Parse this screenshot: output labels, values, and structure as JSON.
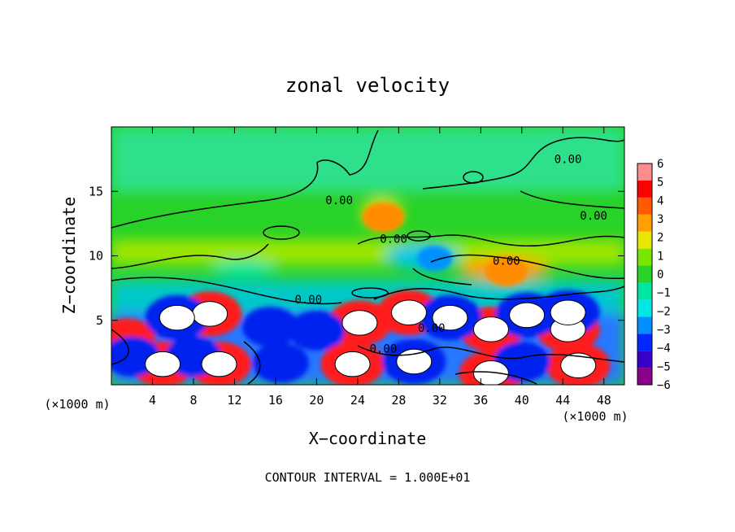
{
  "chart_data": {
    "type": "heatmap",
    "title": "zonal velocity",
    "xlabel": "X−coordinate",
    "ylabel": "Z−coordinate",
    "x_unit_label_left": "(×1000 m)",
    "x_unit_label_right": "(×1000 m)",
    "footnote": "CONTOUR INTERVAL = 1.000E+01",
    "xlim": [
      0,
      50
    ],
    "ylim": [
      0,
      20
    ],
    "x_ticks": [
      4,
      8,
      12,
      16,
      20,
      24,
      28,
      32,
      36,
      40,
      44,
      48
    ],
    "x_tick_labels": [
      "4",
      "8",
      "12",
      "16",
      "20",
      "24",
      "28",
      "32",
      "36",
      "40",
      "44",
      "48"
    ],
    "y_ticks": [
      5,
      10,
      15
    ],
    "y_tick_labels": [
      "5",
      "10",
      "15"
    ],
    "colorbar": {
      "min": -6,
      "max": 6,
      "labels": [
        "6",
        "5",
        "4",
        "3",
        "2",
        "1",
        "0",
        "−1",
        "−2",
        "−3",
        "−4",
        "−5",
        "−6"
      ],
      "colors": [
        "#8b008b",
        "#3b00c8",
        "#0028ff",
        "#0090ff",
        "#00e6e6",
        "#00e6a0",
        "#28d228",
        "#7ae600",
        "#e6e600",
        "#ffa000",
        "#ff5a00",
        "#ff0000",
        "#ff8c8c"
      ]
    },
    "contour_labels": [
      {
        "text": "0.00",
        "x": 44.5,
        "y": 17.2
      },
      {
        "text": "0.00",
        "x": 22.2,
        "y": 14.0
      },
      {
        "text": "0.00",
        "x": 47.0,
        "y": 12.8
      },
      {
        "text": "0.00",
        "x": 27.5,
        "y": 11.0
      },
      {
        "text": "0.00",
        "x": 38.5,
        "y": 9.3
      },
      {
        "text": "0.00",
        "x": 19.2,
        "y": 6.3
      },
      {
        "text": "0.00",
        "x": 31.2,
        "y": 4.1
      },
      {
        "text": "0.00",
        "x": 26.5,
        "y": 2.5
      }
    ],
    "positive_maxima": [
      {
        "x": 9.6,
        "y": 5.5,
        "value": 6
      },
      {
        "x": 29.0,
        "y": 5.6,
        "value": 6
      },
      {
        "x": 24.2,
        "y": 4.8,
        "value": 6
      },
      {
        "x": 37.0,
        "y": 4.3,
        "value": 6
      },
      {
        "x": 44.5,
        "y": 4.3,
        "value": 6
      },
      {
        "x": 5.0,
        "y": 1.6,
        "value": 6
      },
      {
        "x": 10.5,
        "y": 1.6,
        "value": 6
      },
      {
        "x": 23.5,
        "y": 1.6,
        "value": 6
      },
      {
        "x": 37.0,
        "y": 0.9,
        "value": 6
      },
      {
        "x": 45.5,
        "y": 1.5,
        "value": 6
      },
      {
        "x": 1.5,
        "y": 3.6,
        "value": 5
      },
      {
        "x": 26.5,
        "y": 13.0,
        "value": 3
      },
      {
        "x": 38.5,
        "y": 8.8,
        "value": 3
      }
    ],
    "negative_minima": [
      {
        "x": 6.4,
        "y": 5.2,
        "value": -6
      },
      {
        "x": 33.0,
        "y": 5.2,
        "value": -6
      },
      {
        "x": 40.5,
        "y": 5.4,
        "value": -6
      },
      {
        "x": 44.5,
        "y": 5.6,
        "value": -6
      },
      {
        "x": 15.5,
        "y": 4.5,
        "value": -5
      },
      {
        "x": 20.0,
        "y": 4.2,
        "value": -5
      },
      {
        "x": 2.0,
        "y": 2.2,
        "value": -5
      },
      {
        "x": 8.0,
        "y": 2.2,
        "value": -5
      },
      {
        "x": 16.5,
        "y": 1.7,
        "value": -5
      },
      {
        "x": 29.5,
        "y": 1.8,
        "value": -6
      },
      {
        "x": 40.0,
        "y": 1.8,
        "value": -5
      },
      {
        "x": 31.5,
        "y": 9.8,
        "value": -2
      }
    ]
  }
}
